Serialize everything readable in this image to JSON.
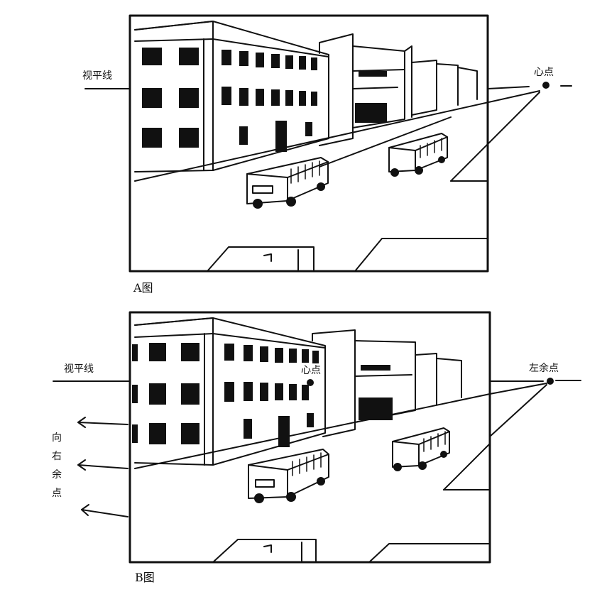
{
  "figure_a": {
    "caption": "A图",
    "horizon_label": "视平线",
    "vanishing_label": "心点"
  },
  "figure_b": {
    "caption": "B图",
    "horizon_label": "视平线",
    "center_label": "心点",
    "left_vp_label": "左余点",
    "right_vp_label_chars": [
      "向",
      "右",
      "余",
      "点"
    ]
  }
}
